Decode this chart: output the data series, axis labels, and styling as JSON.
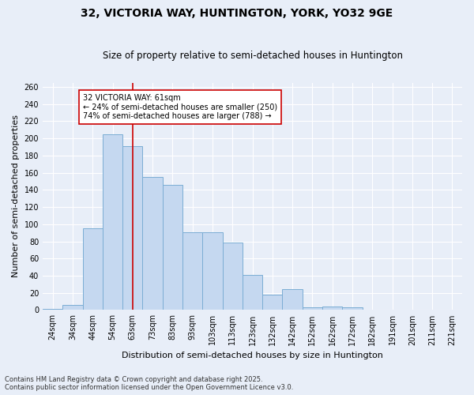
{
  "title": "32, VICTORIA WAY, HUNTINGTON, YORK, YO32 9GE",
  "subtitle": "Size of property relative to semi-detached houses in Huntington",
  "xlabel": "Distribution of semi-detached houses by size in Huntington",
  "ylabel": "Number of semi-detached properties",
  "categories": [
    "24sqm",
    "34sqm",
    "44sqm",
    "54sqm",
    "63sqm",
    "73sqm",
    "83sqm",
    "93sqm",
    "103sqm",
    "113sqm",
    "123sqm",
    "132sqm",
    "142sqm",
    "152sqm",
    "162sqm",
    "172sqm",
    "182sqm",
    "191sqm",
    "201sqm",
    "211sqm",
    "221sqm"
  ],
  "values": [
    1,
    6,
    95,
    205,
    191,
    155,
    146,
    91,
    91,
    79,
    41,
    18,
    24,
    3,
    4,
    3,
    0,
    0,
    0,
    0,
    0
  ],
  "bar_color": "#c5d8f0",
  "bar_edge_color": "#7badd4",
  "vline_x_index": 4,
  "vline_color": "#cc0000",
  "annotation_text": "32 VICTORIA WAY: 61sqm\n← 24% of semi-detached houses are smaller (250)\n74% of semi-detached houses are larger (788) →",
  "annotation_box_color": "#ffffff",
  "annotation_box_edge": "#cc0000",
  "ylim": [
    0,
    265
  ],
  "yticks": [
    0,
    20,
    40,
    60,
    80,
    100,
    120,
    140,
    160,
    180,
    200,
    220,
    240,
    260
  ],
  "footnote": "Contains HM Land Registry data © Crown copyright and database right 2025.\nContains public sector information licensed under the Open Government Licence v3.0.",
  "bg_color": "#e8eef8",
  "plot_bg_color": "#e8eef8",
  "grid_color": "#ffffff",
  "title_fontsize": 10,
  "subtitle_fontsize": 8.5,
  "axis_label_fontsize": 8,
  "tick_fontsize": 7,
  "footnote_fontsize": 6,
  "annotation_fontsize": 7
}
